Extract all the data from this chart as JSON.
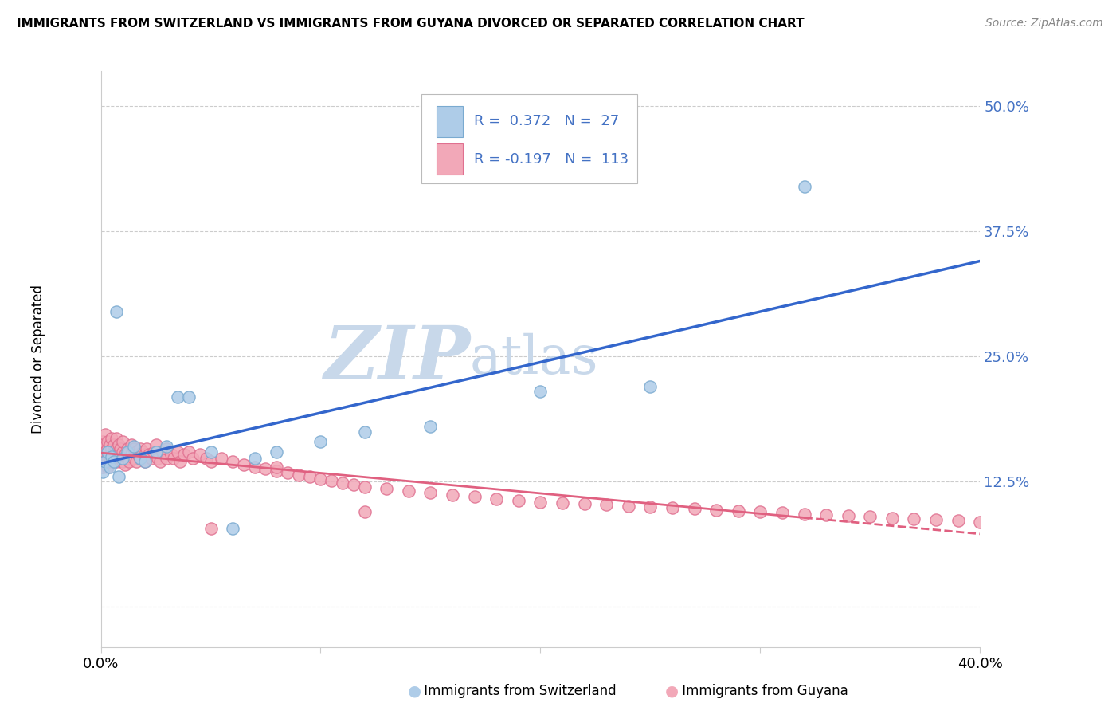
{
  "title": "IMMIGRANTS FROM SWITZERLAND VS IMMIGRANTS FROM GUYANA DIVORCED OR SEPARATED CORRELATION CHART",
  "source": "Source: ZipAtlas.com",
  "ylabel": "Divorced or Separated",
  "xlim": [
    0.0,
    0.4
  ],
  "ylim": [
    -0.04,
    0.535
  ],
  "yticks": [
    0.0,
    0.125,
    0.25,
    0.375,
    0.5
  ],
  "ytick_labels": [
    "",
    "12.5%",
    "25.0%",
    "37.5%",
    "50.0%"
  ],
  "series1_name": "Immigrants from Switzerland",
  "series2_name": "Immigrants from Guyana",
  "series1_fill": "#aecce8",
  "series2_fill": "#f2a8b8",
  "series1_edge": "#7aaad0",
  "series2_edge": "#e07090",
  "trend1_color": "#3366cc",
  "trend2_color": "#e06080",
  "R1": 0.372,
  "N1": 27,
  "R2": -0.197,
  "N2": 113,
  "watermark_zip": "ZIP",
  "watermark_atlas": "atlas",
  "watermark_color": "#c8d8ea",
  "background": "#ffffff",
  "grid_color": "#cccccc",
  "label_color": "#4472C4",
  "series1_x": [
    0.001,
    0.002,
    0.003,
    0.004,
    0.005,
    0.006,
    0.007,
    0.008,
    0.01,
    0.012,
    0.015,
    0.018,
    0.02,
    0.025,
    0.03,
    0.035,
    0.04,
    0.05,
    0.06,
    0.07,
    0.08,
    0.1,
    0.12,
    0.15,
    0.2,
    0.25,
    0.32
  ],
  "series1_y": [
    0.135,
    0.145,
    0.155,
    0.14,
    0.15,
    0.145,
    0.295,
    0.13,
    0.148,
    0.155,
    0.16,
    0.148,
    0.145,
    0.155,
    0.16,
    0.21,
    0.21,
    0.155,
    0.078,
    0.148,
    0.155,
    0.165,
    0.175,
    0.18,
    0.215,
    0.22,
    0.42
  ],
  "series2_x": [
    0.001,
    0.001,
    0.001,
    0.002,
    0.002,
    0.002,
    0.002,
    0.003,
    0.003,
    0.003,
    0.003,
    0.004,
    0.004,
    0.004,
    0.005,
    0.005,
    0.005,
    0.006,
    0.006,
    0.006,
    0.007,
    0.007,
    0.007,
    0.008,
    0.008,
    0.009,
    0.009,
    0.01,
    0.01,
    0.01,
    0.011,
    0.011,
    0.012,
    0.012,
    0.013,
    0.013,
    0.014,
    0.014,
    0.015,
    0.015,
    0.016,
    0.016,
    0.017,
    0.018,
    0.018,
    0.019,
    0.02,
    0.02,
    0.021,
    0.022,
    0.023,
    0.024,
    0.025,
    0.026,
    0.027,
    0.028,
    0.03,
    0.03,
    0.032,
    0.033,
    0.035,
    0.036,
    0.038,
    0.04,
    0.042,
    0.045,
    0.048,
    0.05,
    0.055,
    0.06,
    0.065,
    0.07,
    0.075,
    0.08,
    0.085,
    0.09,
    0.095,
    0.1,
    0.105,
    0.11,
    0.115,
    0.12,
    0.13,
    0.14,
    0.15,
    0.16,
    0.17,
    0.18,
    0.19,
    0.2,
    0.21,
    0.22,
    0.23,
    0.24,
    0.25,
    0.26,
    0.27,
    0.28,
    0.29,
    0.3,
    0.31,
    0.32,
    0.33,
    0.34,
    0.35,
    0.36,
    0.37,
    0.38,
    0.39,
    0.4,
    0.05,
    0.08,
    0.12
  ],
  "series2_y": [
    0.155,
    0.165,
    0.14,
    0.16,
    0.148,
    0.155,
    0.172,
    0.158,
    0.148,
    0.165,
    0.14,
    0.152,
    0.162,
    0.145,
    0.158,
    0.148,
    0.168,
    0.155,
    0.145,
    0.162,
    0.158,
    0.145,
    0.168,
    0.152,
    0.162,
    0.148,
    0.158,
    0.155,
    0.145,
    0.165,
    0.152,
    0.142,
    0.158,
    0.148,
    0.155,
    0.145,
    0.162,
    0.152,
    0.158,
    0.148,
    0.155,
    0.145,
    0.152,
    0.158,
    0.148,
    0.155,
    0.152,
    0.145,
    0.158,
    0.152,
    0.148,
    0.155,
    0.162,
    0.148,
    0.145,
    0.155,
    0.148,
    0.158,
    0.152,
    0.148,
    0.155,
    0.145,
    0.152,
    0.155,
    0.148,
    0.152,
    0.148,
    0.145,
    0.148,
    0.145,
    0.142,
    0.14,
    0.138,
    0.136,
    0.134,
    0.132,
    0.13,
    0.128,
    0.126,
    0.124,
    0.122,
    0.12,
    0.118,
    0.116,
    0.114,
    0.112,
    0.11,
    0.108,
    0.106,
    0.105,
    0.104,
    0.103,
    0.102,
    0.101,
    0.1,
    0.099,
    0.098,
    0.097,
    0.096,
    0.095,
    0.094,
    0.093,
    0.092,
    0.091,
    0.09,
    0.089,
    0.088,
    0.087,
    0.086,
    0.085,
    0.078,
    0.14,
    0.095
  ]
}
